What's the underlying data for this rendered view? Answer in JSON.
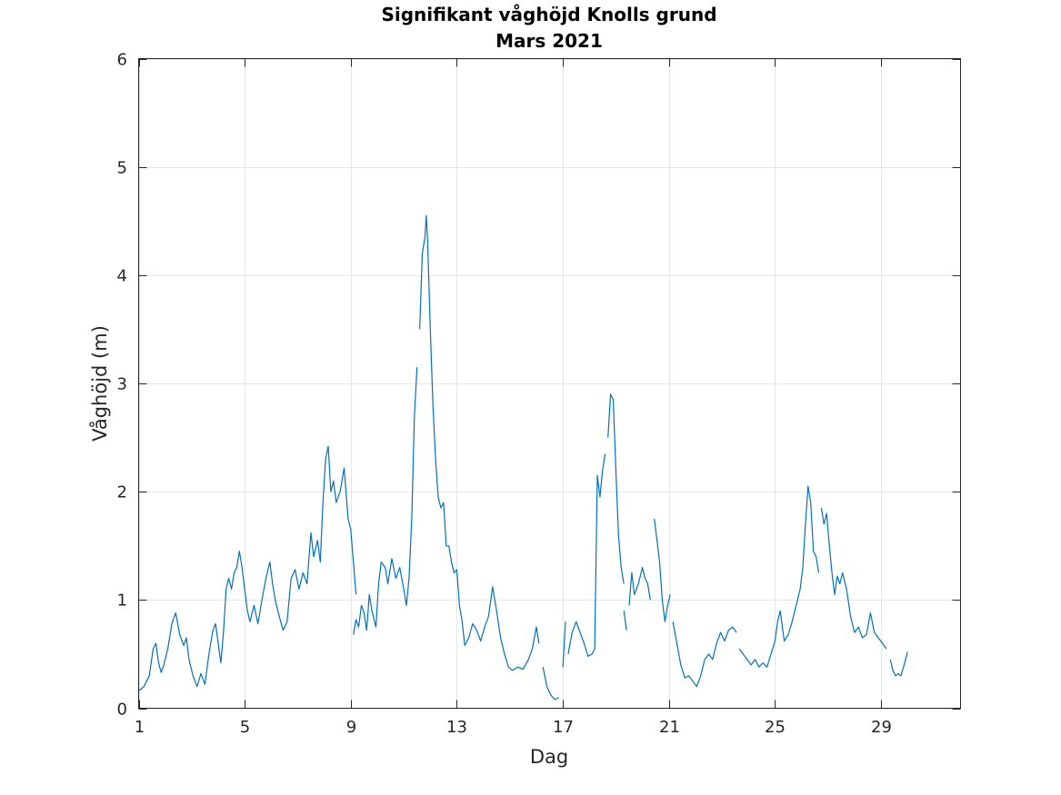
{
  "chart_data": {
    "type": "line",
    "title": "Signifikant våghöjd Knolls grund",
    "subtitle": "Mars 2021",
    "xlabel": "Dag",
    "ylabel": "Våghöjd (m)",
    "xlim": [
      1,
      32
    ],
    "ylim": [
      0,
      6
    ],
    "xticks": [
      1,
      5,
      9,
      13,
      17,
      21,
      25,
      29
    ],
    "yticks": [
      0,
      1,
      2,
      3,
      4,
      5,
      6
    ],
    "grid": true,
    "line_color": "#0072bd",
    "segments": [
      [
        [
          1.0,
          0.16
        ],
        [
          1.2,
          0.2
        ],
        [
          1.4,
          0.3
        ],
        [
          1.55,
          0.55
        ],
        [
          1.65,
          0.6
        ],
        [
          1.75,
          0.42
        ],
        [
          1.85,
          0.33
        ],
        [
          1.95,
          0.4
        ],
        [
          2.1,
          0.55
        ],
        [
          2.25,
          0.78
        ],
        [
          2.4,
          0.88
        ],
        [
          2.55,
          0.68
        ],
        [
          2.7,
          0.58
        ],
        [
          2.8,
          0.65
        ],
        [
          2.9,
          0.45
        ],
        [
          3.05,
          0.3
        ],
        [
          3.2,
          0.2
        ],
        [
          3.35,
          0.32
        ],
        [
          3.5,
          0.22
        ],
        [
          3.65,
          0.5
        ],
        [
          3.8,
          0.72
        ],
        [
          3.9,
          0.78
        ],
        [
          4.0,
          0.6
        ],
        [
          4.1,
          0.42
        ],
        [
          4.2,
          0.7
        ],
        [
          4.3,
          1.1
        ],
        [
          4.4,
          1.2
        ],
        [
          4.5,
          1.1
        ],
        [
          4.6,
          1.25
        ],
        [
          4.7,
          1.3
        ],
        [
          4.8,
          1.45
        ],
        [
          4.9,
          1.3
        ],
        [
          5.0,
          1.1
        ],
        [
          5.1,
          0.9
        ],
        [
          5.2,
          0.8
        ],
        [
          5.35,
          0.95
        ],
        [
          5.5,
          0.78
        ],
        [
          5.65,
          1.0
        ],
        [
          5.8,
          1.2
        ],
        [
          5.95,
          1.35
        ],
        [
          6.05,
          1.15
        ],
        [
          6.15,
          1.0
        ],
        [
          6.3,
          0.85
        ],
        [
          6.45,
          0.72
        ],
        [
          6.6,
          0.8
        ],
        [
          6.75,
          1.2
        ],
        [
          6.9,
          1.28
        ],
        [
          7.05,
          1.1
        ],
        [
          7.2,
          1.25
        ],
        [
          7.35,
          1.15
        ],
        [
          7.5,
          1.62
        ],
        [
          7.6,
          1.4
        ],
        [
          7.75,
          1.55
        ],
        [
          7.85,
          1.35
        ],
        [
          7.95,
          1.9
        ],
        [
          8.05,
          2.3
        ],
        [
          8.15,
          2.42
        ],
        [
          8.25,
          2.0
        ],
        [
          8.35,
          2.1
        ],
        [
          8.45,
          1.9
        ],
        [
          8.6,
          2.0
        ],
        [
          8.75,
          2.22
        ],
        [
          8.9,
          1.75
        ],
        [
          9.0,
          1.65
        ],
        [
          9.1,
          1.35
        ],
        [
          9.2,
          1.05
        ]
      ],
      [
        [
          9.1,
          0.68
        ],
        [
          9.2,
          0.82
        ],
        [
          9.3,
          0.75
        ],
        [
          9.4,
          0.95
        ],
        [
          9.5,
          0.88
        ],
        [
          9.6,
          0.72
        ],
        [
          9.7,
          1.05
        ],
        [
          9.8,
          0.9
        ],
        [
          9.95,
          0.75
        ],
        [
          10.05,
          1.15
        ],
        [
          10.15,
          1.35
        ],
        [
          10.3,
          1.3
        ],
        [
          10.4,
          1.15
        ],
        [
          10.55,
          1.38
        ],
        [
          10.7,
          1.2
        ],
        [
          10.85,
          1.3
        ],
        [
          11.0,
          1.1
        ],
        [
          11.1,
          0.95
        ],
        [
          11.2,
          1.2
        ],
        [
          11.3,
          1.75
        ],
        [
          11.4,
          2.7
        ],
        [
          11.5,
          3.15
        ]
      ],
      [
        [
          11.6,
          3.5
        ],
        [
          11.7,
          4.2
        ],
        [
          11.8,
          4.35
        ],
        [
          11.85,
          4.55
        ],
        [
          11.9,
          4.3
        ],
        [
          12.0,
          3.5
        ],
        [
          12.1,
          2.8
        ],
        [
          12.2,
          2.3
        ],
        [
          12.3,
          1.95
        ],
        [
          12.4,
          1.85
        ],
        [
          12.5,
          1.9
        ],
        [
          12.6,
          1.5
        ],
        [
          12.7,
          1.5
        ],
        [
          12.8,
          1.35
        ],
        [
          12.9,
          1.25
        ],
        [
          13.0,
          1.28
        ],
        [
          13.1,
          0.95
        ],
        [
          13.2,
          0.8
        ],
        [
          13.3,
          0.58
        ],
        [
          13.45,
          0.65
        ],
        [
          13.6,
          0.78
        ],
        [
          13.75,
          0.72
        ],
        [
          13.9,
          0.62
        ],
        [
          14.05,
          0.75
        ],
        [
          14.2,
          0.85
        ],
        [
          14.35,
          1.12
        ],
        [
          14.5,
          0.9
        ],
        [
          14.65,
          0.65
        ],
        [
          14.8,
          0.5
        ],
        [
          14.95,
          0.38
        ],
        [
          15.1,
          0.35
        ],
        [
          15.3,
          0.38
        ],
        [
          15.5,
          0.36
        ],
        [
          15.7,
          0.45
        ],
        [
          15.85,
          0.55
        ],
        [
          16.0,
          0.75
        ],
        [
          16.1,
          0.6
        ]
      ],
      [
        [
          16.25,
          0.38
        ],
        [
          16.4,
          0.2
        ],
        [
          16.55,
          0.12
        ],
        [
          16.7,
          0.08
        ],
        [
          16.85,
          0.1
        ]
      ],
      [
        [
          17.0,
          0.38
        ],
        [
          17.1,
          0.8
        ]
      ],
      [
        [
          17.2,
          0.5
        ],
        [
          17.35,
          0.7
        ],
        [
          17.5,
          0.8
        ],
        [
          17.65,
          0.7
        ],
        [
          17.8,
          0.6
        ],
        [
          17.95,
          0.48
        ],
        [
          18.1,
          0.5
        ],
        [
          18.2,
          0.55
        ],
        [
          18.3,
          2.15
        ],
        [
          18.4,
          1.95
        ],
        [
          18.5,
          2.2
        ],
        [
          18.6,
          2.35
        ]
      ],
      [
        [
          18.7,
          2.5
        ],
        [
          18.8,
          2.9
        ],
        [
          18.9,
          2.85
        ],
        [
          19.0,
          2.2
        ],
        [
          19.1,
          1.6
        ],
        [
          19.2,
          1.3
        ],
        [
          19.3,
          1.15
        ]
      ],
      [
        [
          19.3,
          0.9
        ],
        [
          19.4,
          0.72
        ]
      ],
      [
        [
          19.5,
          0.95
        ],
        [
          19.6,
          1.25
        ],
        [
          19.7,
          1.05
        ],
        [
          19.85,
          1.15
        ],
        [
          20.0,
          1.3
        ],
        [
          20.1,
          1.2
        ],
        [
          20.2,
          1.15
        ],
        [
          20.3,
          1.0
        ]
      ],
      [
        [
          20.45,
          1.75
        ],
        [
          20.55,
          1.55
        ],
        [
          20.65,
          1.35
        ],
        [
          20.75,
          1.0
        ],
        [
          20.85,
          0.8
        ],
        [
          20.95,
          0.95
        ],
        [
          21.05,
          1.05
        ]
      ],
      [
        [
          21.15,
          0.8
        ],
        [
          21.3,
          0.6
        ],
        [
          21.45,
          0.4
        ],
        [
          21.6,
          0.28
        ],
        [
          21.75,
          0.3
        ],
        [
          21.9,
          0.25
        ],
        [
          22.05,
          0.2
        ],
        [
          22.2,
          0.3
        ],
        [
          22.35,
          0.45
        ],
        [
          22.5,
          0.5
        ],
        [
          22.65,
          0.45
        ],
        [
          22.8,
          0.6
        ],
        [
          22.95,
          0.7
        ],
        [
          23.1,
          0.62
        ],
        [
          23.25,
          0.72
        ],
        [
          23.4,
          0.75
        ],
        [
          23.55,
          0.7
        ]
      ],
      [
        [
          23.65,
          0.55
        ],
        [
          23.8,
          0.5
        ],
        [
          23.95,
          0.45
        ],
        [
          24.1,
          0.4
        ],
        [
          24.25,
          0.45
        ],
        [
          24.4,
          0.38
        ],
        [
          24.55,
          0.42
        ],
        [
          24.7,
          0.38
        ],
        [
          24.85,
          0.5
        ],
        [
          25.0,
          0.62
        ],
        [
          25.1,
          0.8
        ],
        [
          25.2,
          0.9
        ],
        [
          25.35,
          0.62
        ],
        [
          25.5,
          0.68
        ],
        [
          25.65,
          0.8
        ],
        [
          25.8,
          0.95
        ],
        [
          25.95,
          1.1
        ],
        [
          26.05,
          1.3
        ],
        [
          26.15,
          1.7
        ],
        [
          26.25,
          2.05
        ],
        [
          26.35,
          1.9
        ],
        [
          26.45,
          1.45
        ],
        [
          26.55,
          1.4
        ],
        [
          26.65,
          1.25
        ]
      ],
      [
        [
          26.75,
          1.85
        ],
        [
          26.85,
          1.7
        ],
        [
          26.95,
          1.8
        ],
        [
          27.05,
          1.5
        ],
        [
          27.15,
          1.25
        ],
        [
          27.25,
          1.05
        ],
        [
          27.35,
          1.22
        ],
        [
          27.45,
          1.15
        ],
        [
          27.55,
          1.25
        ],
        [
          27.7,
          1.1
        ],
        [
          27.85,
          0.85
        ],
        [
          28.0,
          0.7
        ],
        [
          28.15,
          0.75
        ],
        [
          28.3,
          0.65
        ],
        [
          28.45,
          0.68
        ],
        [
          28.6,
          0.88
        ],
        [
          28.75,
          0.7
        ],
        [
          28.9,
          0.65
        ],
        [
          29.05,
          0.6
        ],
        [
          29.2,
          0.55
        ]
      ],
      [
        [
          29.35,
          0.45
        ],
        [
          29.45,
          0.35
        ],
        [
          29.55,
          0.3
        ],
        [
          29.65,
          0.32
        ],
        [
          29.75,
          0.3
        ],
        [
          29.85,
          0.38
        ],
        [
          30.0,
          0.52
        ]
      ]
    ]
  }
}
